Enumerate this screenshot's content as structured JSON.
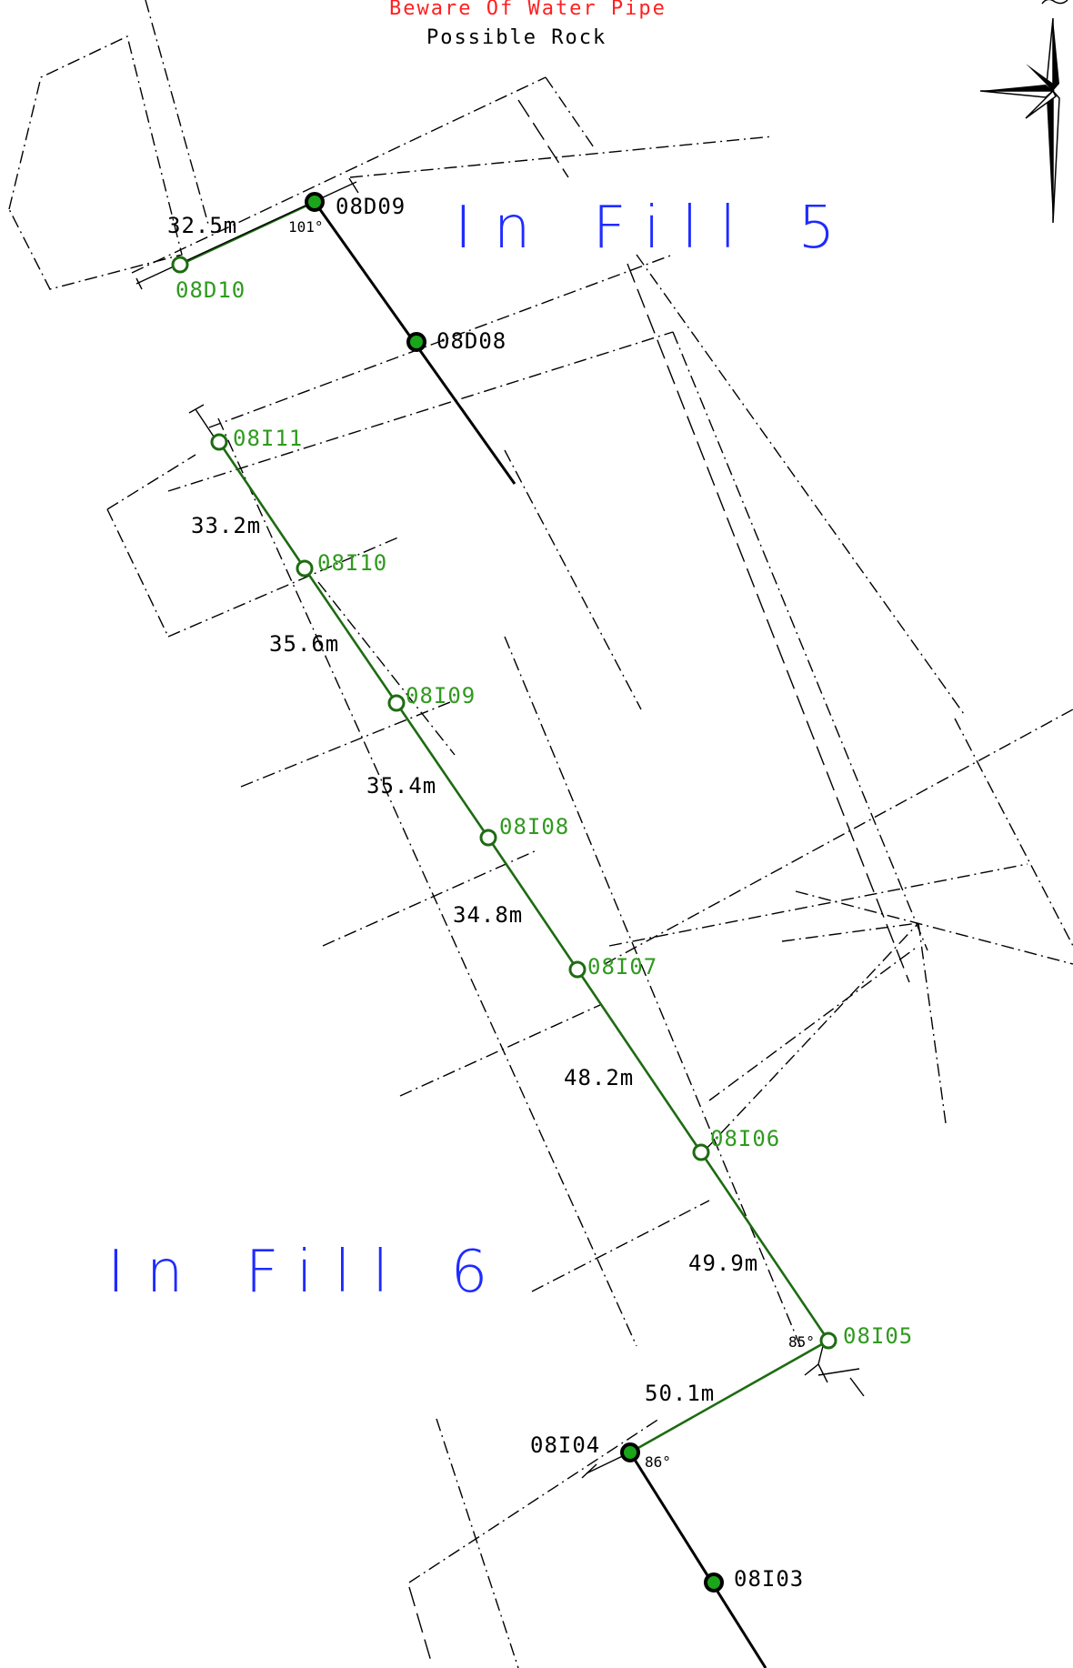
{
  "header": {
    "warning": "Beware Of Water Pipe",
    "note": "Possible Rock"
  },
  "zones": {
    "fill5": "In Fill 5",
    "fill6": "In Fill 6"
  },
  "nodes": [
    {
      "id": "08D09",
      "label": "08D09",
      "kind": "existing"
    },
    {
      "id": "08D10",
      "label": "08D10",
      "kind": "proposed"
    },
    {
      "id": "08D08",
      "label": "08D08",
      "kind": "existing"
    },
    {
      "id": "08I11",
      "label": "08I11",
      "kind": "proposed"
    },
    {
      "id": "08I10",
      "label": "08I10",
      "kind": "proposed"
    },
    {
      "id": "08I09",
      "label": "08I09",
      "kind": "proposed"
    },
    {
      "id": "08I08",
      "label": "08I08",
      "kind": "proposed"
    },
    {
      "id": "08I07",
      "label": "08I07",
      "kind": "proposed"
    },
    {
      "id": "08I06",
      "label": "08I06",
      "kind": "proposed"
    },
    {
      "id": "08I05",
      "label": "08I05",
      "kind": "proposed"
    },
    {
      "id": "08I04",
      "label": "08I04",
      "kind": "existing"
    },
    {
      "id": "08I03",
      "label": "08I03",
      "kind": "existing"
    }
  ],
  "segments": [
    {
      "from": "08D10",
      "to": "08D09",
      "length": "32.5m"
    },
    {
      "from": "08I11",
      "to": "08I10",
      "length": "33.2m"
    },
    {
      "from": "08I10",
      "to": "08I09",
      "length": "35.6m"
    },
    {
      "from": "08I09",
      "to": "08I08",
      "length": "35.4m"
    },
    {
      "from": "08I08",
      "to": "08I07",
      "length": "34.8m"
    },
    {
      "from": "08I07",
      "to": "08I06",
      "length": "48.2m"
    },
    {
      "from": "08I06",
      "to": "08I05",
      "length": "49.9m"
    },
    {
      "from": "08I05",
      "to": "08I04",
      "length": "50.1m"
    }
  ],
  "angles": {
    "a08D09": "101°",
    "a08I05": "85°",
    "a08I04": "86°"
  },
  "colors": {
    "proposed_line": "#1e6b12",
    "proposed_label": "#2f9a1e",
    "existing_line": "#000000",
    "zone_label": "#1f2bff",
    "warning": "#ff2020"
  },
  "icons": {
    "north_arrow": "compass-rose-icon"
  }
}
